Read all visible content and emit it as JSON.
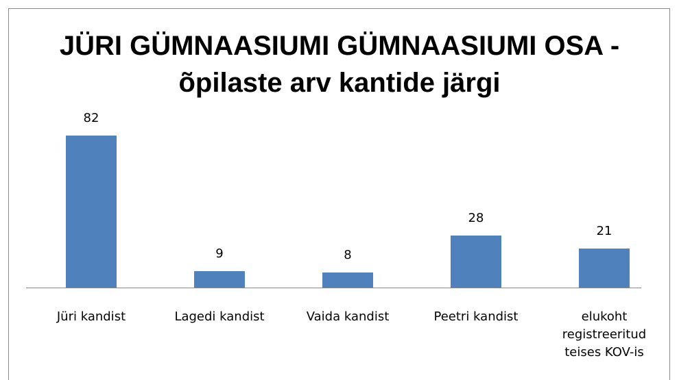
{
  "chart_data": {
    "type": "bar",
    "title": "JÜRI GÜMNAASIUMI GÜMNAASIUMI OSA - õpilaste arv kantide järgi",
    "categories": [
      "Jüri kandist",
      "Lagedi kandist",
      "Vaida kandist",
      "Peetri kandist",
      "elukoht registreeritud teises KOV-is"
    ],
    "values": [
      82,
      9,
      8,
      28,
      21
    ],
    "color": "#4f81bd"
  }
}
